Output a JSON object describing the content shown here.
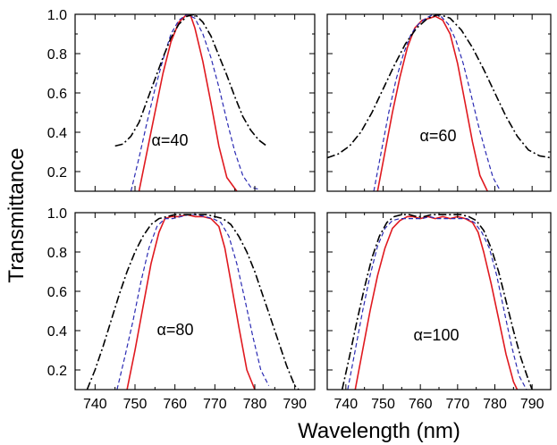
{
  "figure": {
    "ylabel": "Transmittance",
    "xlabel": "Wavelength (nm)",
    "colors": {
      "solid": "#e0191f",
      "dashed": "#2b2bb3",
      "dashdot": "#000000"
    }
  },
  "chart_data": [
    {
      "type": "line",
      "annotation": "α=40",
      "xlim": [
        735,
        795
      ],
      "ylim": [
        0.1,
        1.0
      ],
      "xticks": [
        740,
        750,
        760,
        770,
        780,
        790
      ],
      "yticks": [
        0.2,
        0.4,
        0.6,
        0.8,
        1.0
      ],
      "series": [
        {
          "style": "solid",
          "color": "#e0191f",
          "x": [
            751,
            753,
            755,
            757,
            759,
            761,
            763,
            764,
            765,
            767,
            769,
            771,
            773,
            775.5
          ],
          "y": [
            0.1,
            0.3,
            0.5,
            0.7,
            0.86,
            0.96,
            1.0,
            0.99,
            0.93,
            0.76,
            0.55,
            0.33,
            0.17,
            0.1
          ]
        },
        {
          "style": "dashed",
          "color": "#2b2bb3",
          "x": [
            749,
            751,
            753,
            755,
            757,
            759,
            761,
            763,
            765,
            767,
            769,
            771,
            773,
            775,
            777,
            779,
            781
          ],
          "y": [
            0.1,
            0.27,
            0.45,
            0.62,
            0.77,
            0.9,
            0.97,
            1.0,
            0.98,
            0.9,
            0.78,
            0.63,
            0.46,
            0.3,
            0.18,
            0.12,
            0.11
          ]
        },
        {
          "style": "dash-dot",
          "color": "#000000",
          "x": [
            745,
            747,
            749,
            751,
            753,
            755,
            757,
            759,
            761,
            763,
            765,
            767,
            769,
            771,
            773,
            775,
            777,
            779,
            781,
            783
          ],
          "y": [
            0.33,
            0.34,
            0.38,
            0.45,
            0.56,
            0.67,
            0.78,
            0.88,
            0.95,
            0.99,
            1.0,
            0.96,
            0.89,
            0.79,
            0.69,
            0.58,
            0.48,
            0.41,
            0.36,
            0.33
          ]
        }
      ]
    },
    {
      "type": "line",
      "annotation": "α=60",
      "xlim": [
        735,
        795
      ],
      "ylim": [
        0.1,
        1.0
      ],
      "xticks": [
        740,
        750,
        760,
        770,
        780,
        790
      ],
      "yticks": [
        0.2,
        0.4,
        0.6,
        0.8,
        1.0
      ],
      "series": [
        {
          "style": "solid",
          "color": "#e0191f",
          "x": [
            748.5,
            750.5,
            752.5,
            754.5,
            756.5,
            758.5,
            760.5,
            762.5,
            764,
            766,
            768,
            770,
            772,
            774,
            776,
            778
          ],
          "y": [
            0.1,
            0.3,
            0.5,
            0.68,
            0.83,
            0.93,
            0.97,
            0.98,
            0.99,
            0.97,
            0.9,
            0.75,
            0.55,
            0.35,
            0.18,
            0.1
          ]
        },
        {
          "style": "dashed",
          "color": "#2b2bb3",
          "x": [
            747.5,
            749.5,
            751.5,
            753.5,
            755.5,
            757.5,
            759.5,
            761.5,
            763.5,
            765.5,
            767.5,
            769.5,
            771.5,
            773.5,
            775.5,
            777.5,
            779.5,
            781.5
          ],
          "y": [
            0.1,
            0.3,
            0.5,
            0.67,
            0.8,
            0.9,
            0.95,
            0.98,
            1.0,
            0.99,
            0.95,
            0.87,
            0.75,
            0.6,
            0.44,
            0.3,
            0.17,
            0.1
          ]
        },
        {
          "style": "dash-dot",
          "color": "#000000",
          "x": [
            735,
            738,
            741,
            744,
            747,
            750,
            753,
            756,
            759,
            762,
            765,
            768,
            771,
            774,
            777,
            780,
            783,
            786,
            789,
            792,
            795
          ],
          "y": [
            0.27,
            0.29,
            0.33,
            0.4,
            0.5,
            0.62,
            0.74,
            0.85,
            0.93,
            0.98,
            1.0,
            0.98,
            0.92,
            0.83,
            0.72,
            0.6,
            0.48,
            0.38,
            0.31,
            0.28,
            0.27
          ]
        }
      ]
    },
    {
      "type": "line",
      "annotation": "α=80",
      "xlim": [
        735,
        795
      ],
      "ylim": [
        0.1,
        1.0
      ],
      "xticks": [
        740,
        750,
        760,
        770,
        780,
        790
      ],
      "yticks": [
        0.2,
        0.4,
        0.6,
        0.8,
        1.0
      ],
      "series": [
        {
          "style": "solid",
          "color": "#e0191f",
          "x": [
            748,
            750,
            752,
            754,
            756,
            757.5,
            759,
            761,
            763,
            765,
            767,
            769,
            771,
            772.5,
            774,
            776,
            778,
            780
          ],
          "y": [
            0.1,
            0.3,
            0.52,
            0.74,
            0.9,
            0.97,
            0.98,
            0.98,
            0.99,
            0.98,
            0.98,
            0.97,
            0.93,
            0.82,
            0.65,
            0.42,
            0.2,
            0.1
          ]
        },
        {
          "style": "dashed",
          "color": "#2b2bb3",
          "x": [
            745.5,
            747.5,
            749.5,
            751.5,
            753.5,
            755.5,
            757.5,
            759.5,
            761.5,
            763.5,
            765.5,
            767.5,
            769.5,
            771.5,
            773.5,
            775.5,
            777.5,
            779.5,
            781.5,
            783.5
          ],
          "y": [
            0.1,
            0.27,
            0.45,
            0.65,
            0.82,
            0.93,
            0.97,
            0.97,
            0.98,
            0.99,
            0.99,
            0.98,
            0.97,
            0.95,
            0.88,
            0.74,
            0.56,
            0.37,
            0.2,
            0.12
          ]
        },
        {
          "style": "dash-dot",
          "color": "#000000",
          "x": [
            738,
            740,
            742,
            744,
            746,
            748,
            750,
            752,
            754,
            756,
            758,
            760,
            762,
            764,
            766,
            768,
            770,
            772,
            774,
            776,
            778,
            780,
            782,
            784,
            786,
            788,
            790,
            791
          ],
          "y": [
            0.1,
            0.2,
            0.32,
            0.45,
            0.58,
            0.7,
            0.8,
            0.88,
            0.94,
            0.97,
            0.98,
            0.99,
            0.99,
            0.99,
            0.99,
            0.99,
            0.98,
            0.97,
            0.94,
            0.88,
            0.8,
            0.7,
            0.58,
            0.46,
            0.34,
            0.22,
            0.12,
            0.1
          ]
        }
      ]
    },
    {
      "type": "line",
      "annotation": "α=100",
      "xlim": [
        735,
        795
      ],
      "ylim": [
        0.1,
        1.0
      ],
      "xticks": [
        740,
        750,
        760,
        770,
        780,
        790
      ],
      "yticks": [
        0.2,
        0.4,
        0.6,
        0.8,
        1.0
      ],
      "series": [
        {
          "style": "solid",
          "color": "#e0191f",
          "x": [
            742.5,
            744.5,
            746.5,
            748.5,
            750.5,
            752.5,
            754.5,
            756.5,
            758,
            760,
            762,
            764,
            766,
            768,
            770,
            772,
            774,
            775.5,
            777,
            779,
            781,
            783,
            785,
            786
          ],
          "y": [
            0.1,
            0.3,
            0.5,
            0.68,
            0.82,
            0.92,
            0.96,
            0.98,
            0.98,
            0.97,
            0.98,
            0.97,
            0.98,
            0.97,
            0.98,
            0.97,
            0.95,
            0.9,
            0.8,
            0.64,
            0.46,
            0.28,
            0.14,
            0.1
          ]
        },
        {
          "style": "dashed",
          "color": "#2b2bb3",
          "x": [
            740.5,
            742.5,
            744.5,
            746.5,
            748.5,
            750.5,
            752.5,
            754.5,
            756.5,
            758.5,
            760.5,
            762.5,
            764.5,
            766.5,
            768.5,
            770.5,
            772.5,
            774.5,
            776.5,
            778.5,
            780.5,
            782.5,
            784.5,
            786.5,
            788.5
          ],
          "y": [
            0.1,
            0.3,
            0.5,
            0.68,
            0.83,
            0.92,
            0.96,
            0.97,
            0.97,
            0.97,
            0.97,
            0.98,
            0.97,
            0.97,
            0.97,
            0.97,
            0.97,
            0.95,
            0.9,
            0.82,
            0.68,
            0.5,
            0.32,
            0.17,
            0.1
          ]
        },
        {
          "style": "dash-dot",
          "color": "#000000",
          "x": [
            739,
            741,
            743,
            745,
            747,
            749,
            751,
            753,
            755,
            757,
            759,
            761,
            763,
            765,
            767,
            769,
            771,
            773,
            775,
            777,
            779,
            781,
            783,
            785,
            787,
            789,
            790
          ],
          "y": [
            0.1,
            0.27,
            0.45,
            0.62,
            0.77,
            0.88,
            0.95,
            0.98,
            0.99,
            0.99,
            0.98,
            0.98,
            0.99,
            0.99,
            0.99,
            0.99,
            0.99,
            0.98,
            0.96,
            0.91,
            0.82,
            0.7,
            0.55,
            0.4,
            0.26,
            0.15,
            0.1
          ]
        }
      ]
    }
  ]
}
